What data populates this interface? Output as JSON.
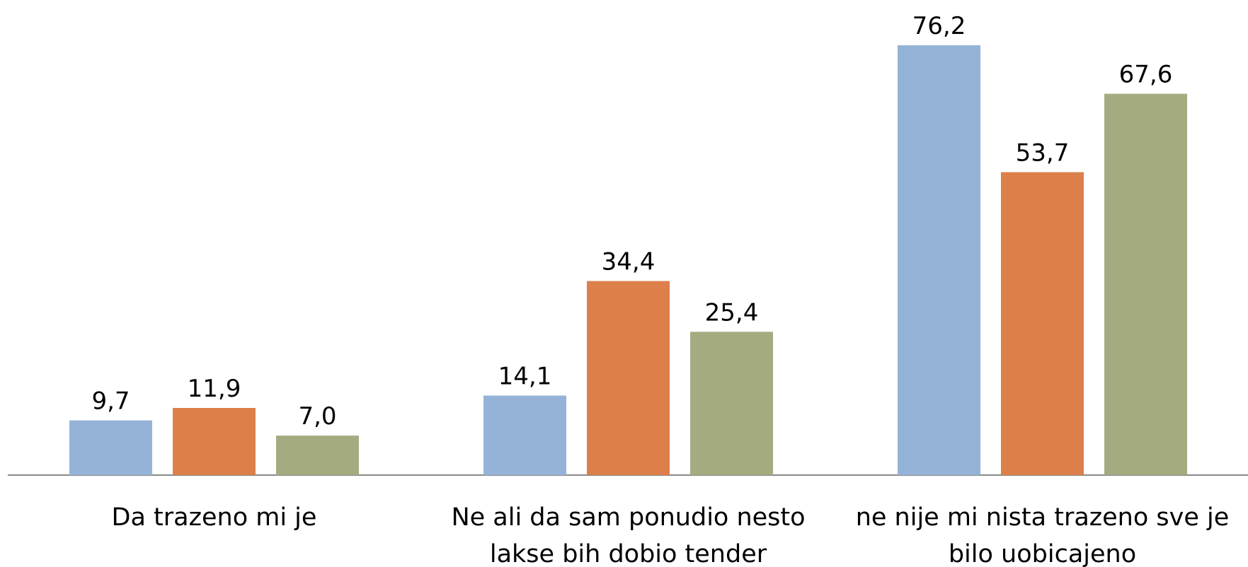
{
  "chart_data": {
    "type": "bar",
    "categories": [
      "Da trazeno mi je",
      "Ne ali da sam ponudio nesto lakse bih dobio tender",
      "ne nije mi nista trazeno sve je bilo uobicajeno"
    ],
    "series": [
      {
        "color": "#95b3d7",
        "values": [
          9.7,
          14.1,
          76.2
        ],
        "value_labels": [
          "9,7",
          "14,1",
          "76,2"
        ]
      },
      {
        "color": "#dd7f4a",
        "values": [
          11.9,
          34.4,
          53.7
        ],
        "value_labels": [
          "11,9",
          "34,4",
          "53,7"
        ]
      },
      {
        "color": "#a5ab80",
        "values": [
          7.0,
          25.4,
          67.6
        ],
        "value_labels": [
          "7,0",
          "25,4",
          "67,6"
        ]
      }
    ]
  }
}
